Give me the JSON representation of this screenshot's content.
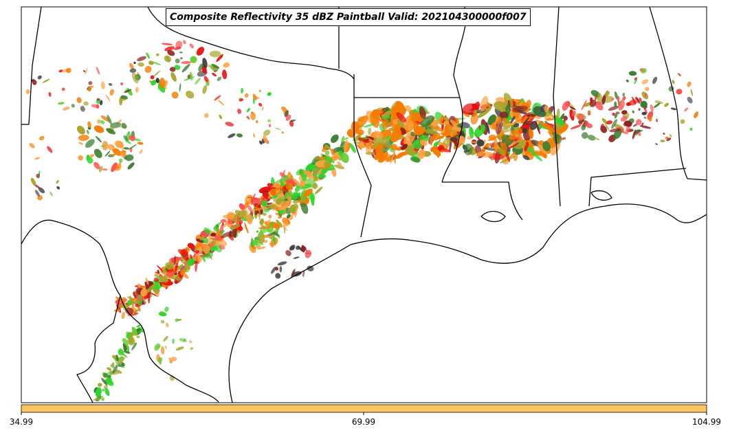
{
  "title": "Composite Reflectivity 35 dBZ Paintball Valid: 202104300000f007",
  "colorbar": {
    "color": "#ffc562",
    "ticks": [
      "34.99",
      "69.99",
      "104.99"
    ]
  },
  "palette": [
    "#e8110f",
    "#f47c00",
    "#ffa040",
    "#8e1f20",
    "#3a7d2e",
    "#2bd62b",
    "#a8a32a",
    "#3c3c3c",
    "#ff5050",
    "#66cc33"
  ]
}
